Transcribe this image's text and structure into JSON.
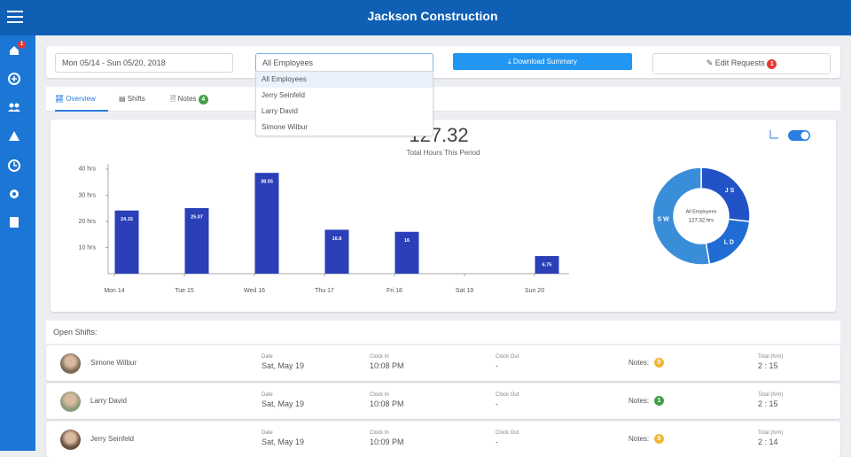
{
  "header": {
    "title": "Jackson Construction"
  },
  "sidebar": {
    "home_badge": "1"
  },
  "toolbar": {
    "date_range": "Mon 05/14 - Sun 05/20, 2018",
    "employee_select": "All Employees",
    "employee_options": [
      "All Employees",
      "Jerry Seinfeld",
      "Larry David",
      "Simone Wilbur"
    ],
    "download": "Download Summary",
    "edit_requests": "Edit Requests",
    "edit_badge": "1"
  },
  "tabs": {
    "overview": "Overview",
    "shifts": "Shifts",
    "notes": "Notes",
    "notes_badge": "4"
  },
  "chart_data": [
    {
      "type": "bar",
      "title": "127.32",
      "subtitle": "Total Hours This Period",
      "categories": [
        "Mon 14",
        "Tue 15",
        "Wed 16",
        "Thu 17",
        "Fri 18",
        "Sat 19",
        "Sun 20"
      ],
      "values": [
        24.15,
        25.07,
        38.55,
        16.8,
        16,
        null,
        6.75
      ],
      "color": "#2a3fb8",
      "ylim": [
        0,
        42
      ],
      "yticks": [
        {
          "value": 10,
          "label": "10 hrs"
        },
        {
          "value": 20,
          "label": "20 hrs"
        },
        {
          "value": 30,
          "label": "30 hrs"
        },
        {
          "value": 40,
          "label": "40 hrs"
        }
      ]
    },
    {
      "type": "pie",
      "categories": [
        "J S",
        "L D",
        "S W"
      ],
      "values": [
        34,
        26,
        67
      ],
      "colors": [
        "#2152c6",
        "#1f6cd4",
        "#3a8ed9"
      ],
      "center_label": "All Employees",
      "center_value": "127.32 hrs"
    }
  ],
  "shifts": {
    "title": "Open Shifts:",
    "columns": [
      "Date",
      "Clock In",
      "Clock Out",
      "Notes:",
      "Total (h/m)"
    ],
    "rows": [
      {
        "name": "Simone Wilbur",
        "date": "Sat, May 19",
        "clock_in": "10:08 PM",
        "clock_out": "-",
        "notes": 0,
        "total": "2 : 15"
      },
      {
        "name": "Larry David",
        "date": "Sat, May 19",
        "clock_in": "10:08 PM",
        "clock_out": "-",
        "notes": 1,
        "total": "2 : 15"
      },
      {
        "name": "Jerry Seinfeld",
        "date": "Sat, May 19",
        "clock_in": "10:09 PM",
        "clock_out": "-",
        "notes": 0,
        "total": "2 : 14"
      }
    ]
  }
}
